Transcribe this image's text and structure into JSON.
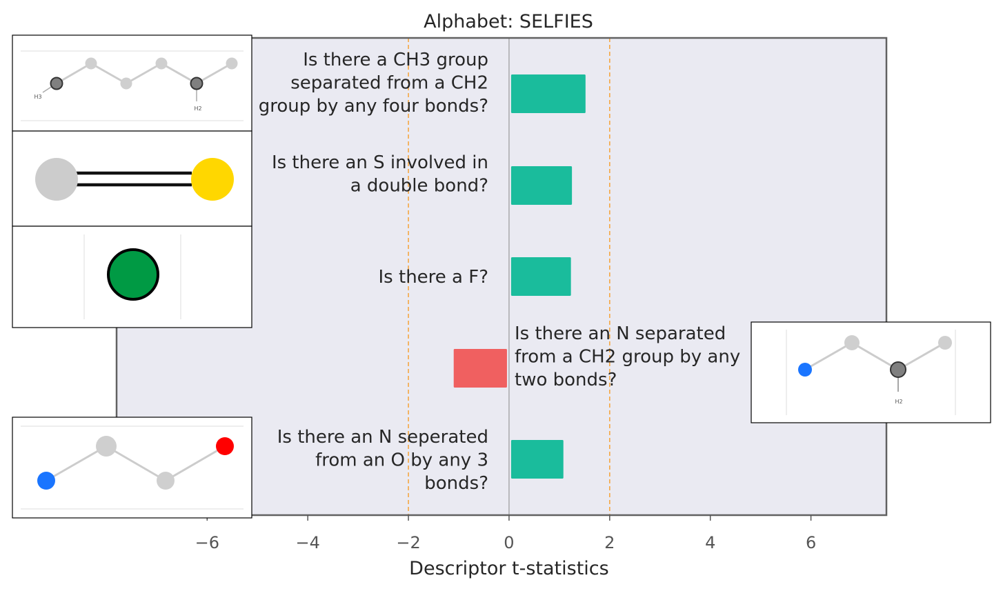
{
  "chart_data": {
    "type": "bar",
    "orientation": "horizontal",
    "title": "Alphabet: SELFIES",
    "xlabel": "Descriptor t-statistics",
    "ylabel": "",
    "xlim": [
      -7.8,
      7.5
    ],
    "xticks": [
      -6,
      -4,
      -2,
      0,
      2,
      4,
      6
    ],
    "significance_lines": [
      -2,
      2
    ],
    "grid": false,
    "bars": [
      {
        "label": "Is there a CH3 group separated from a CH2 group by any four bonds?",
        "value": 1.52,
        "color": "#1abc9c"
      },
      {
        "label": "Is there an S involved in a double bond?",
        "value": 1.25,
        "color": "#1abc9c"
      },
      {
        "label": "Is there a F?",
        "value": 1.23,
        "color": "#1abc9c"
      },
      {
        "label": "Is there an N separated from a CH2 group by any two bonds?",
        "value": -1.1,
        "color": "#f06060"
      },
      {
        "label": "Is there an N seperated from an O by any 3 bonds?",
        "value": 1.08,
        "color": "#1abc9c"
      }
    ],
    "colors": {
      "positive": "#1abc9c",
      "negative": "#f06060",
      "significance_line": "#f5a742",
      "plot_background": "#eaeaf2"
    }
  },
  "molecule_images": [
    {
      "name": "ch3-ch2-four-bonds-molecule",
      "atom_labels": [
        "H3",
        "H2"
      ]
    },
    {
      "name": "s-double-bond-molecule"
    },
    {
      "name": "fluorine-atom-molecule"
    },
    {
      "name": "n-ch2-two-bonds-molecule",
      "atom_labels": [
        "H2"
      ]
    },
    {
      "name": "n-o-three-bonds-molecule"
    }
  ]
}
